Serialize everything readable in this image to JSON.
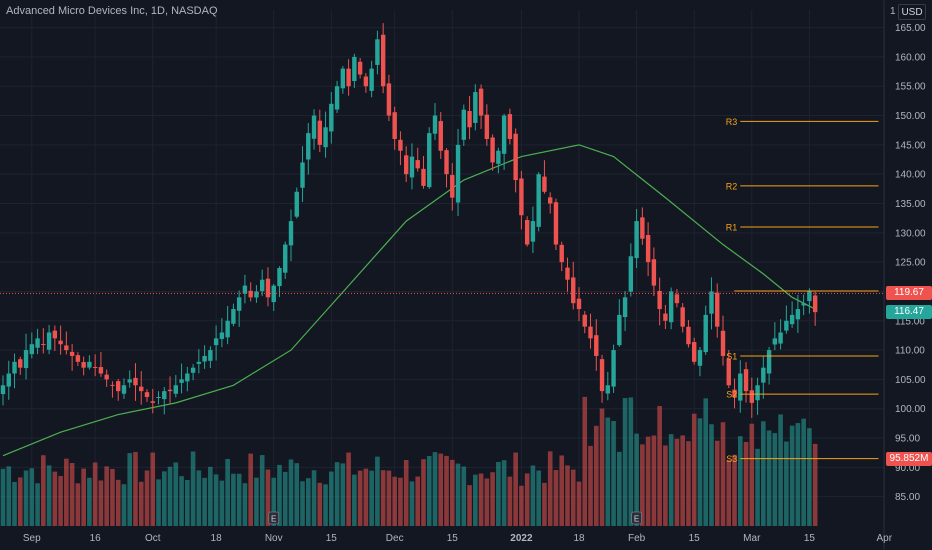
{
  "header": {
    "symbol_title": "Advanced Micro Devices Inc, 1D, NASDAQ",
    "currency": "USD",
    "axis_top_label": "1"
  },
  "colors": {
    "background": "#131722",
    "up": "#26a69a",
    "down": "#ef5350",
    "moving_average": "#4caf50",
    "pivot": "#f7a21b",
    "last_price_line": "#ef5350",
    "grid": "#1f2330",
    "text": "#b2b5be"
  },
  "chart_data": {
    "type": "candlestick",
    "title": "Advanced Micro Devices Inc, 1D, NASDAQ",
    "interval": "1D",
    "exchange": "NASDAQ",
    "currency": "USD",
    "ylim": [
      80,
      168
    ],
    "y_ticks": [
      85,
      90,
      95,
      100,
      105,
      110,
      115,
      120,
      125,
      130,
      135,
      140,
      145,
      150,
      155,
      160,
      165
    ],
    "x_ticks": [
      {
        "label": "Sep",
        "index": 5
      },
      {
        "label": "16",
        "index": 16
      },
      {
        "label": "Oct",
        "index": 26
      },
      {
        "label": "18",
        "index": 37
      },
      {
        "label": "Nov",
        "index": 47
      },
      {
        "label": "15",
        "index": 57
      },
      {
        "label": "Dec",
        "index": 68
      },
      {
        "label": "15",
        "index": 78
      },
      {
        "label": "2022",
        "index": 90
      },
      {
        "label": "18",
        "index": 100
      },
      {
        "label": "Feb",
        "index": 110
      },
      {
        "label": "15",
        "index": 120
      },
      {
        "label": "Mar",
        "index": 130
      },
      {
        "label": "15",
        "index": 140
      },
      {
        "label": "Apr",
        "index": 153
      }
    ],
    "closes": [
      104,
      106,
      108,
      107,
      110,
      111,
      112,
      111,
      113,
      112,
      111,
      110,
      109,
      108,
      107,
      108,
      107,
      106,
      105,
      104,
      103,
      104,
      105,
      104,
      103,
      102,
      101,
      102,
      103,
      103,
      104,
      105,
      106,
      107,
      108,
      109,
      110,
      112,
      113,
      115,
      117,
      119,
      121,
      119,
      120,
      122,
      119,
      121,
      124,
      128,
      132,
      137,
      142,
      147,
      150,
      145,
      148,
      152,
      155,
      158,
      155,
      160,
      157,
      155,
      158,
      163,
      155,
      150,
      146,
      144,
      140,
      143,
      141,
      138,
      147,
      150,
      144,
      140,
      136,
      145,
      151,
      148,
      154,
      150,
      146,
      142,
      144,
      150,
      146,
      139,
      133,
      128,
      132,
      140,
      137,
      135,
      128,
      125,
      122,
      118,
      117,
      114,
      112,
      109,
      103,
      104,
      110,
      116,
      119,
      126,
      132,
      129,
      125,
      121,
      117,
      115,
      120,
      118,
      114,
      111,
      108,
      110,
      116,
      120,
      114,
      109,
      104,
      102,
      106,
      103,
      101,
      104,
      107,
      110,
      112,
      113,
      115,
      116,
      117,
      118,
      120,
      116.47
    ],
    "last_price": 116.47,
    "last_price_label": "116.47",
    "prev_price": 119.67,
    "prev_price_label": "119.67",
    "volume_label": "95.852M",
    "moving_average": {
      "name": "",
      "points": [
        {
          "i": 0,
          "v": 92
        },
        {
          "i": 10,
          "v": 96
        },
        {
          "i": 20,
          "v": 99
        },
        {
          "i": 30,
          "v": 101
        },
        {
          "i": 40,
          "v": 104
        },
        {
          "i": 50,
          "v": 110
        },
        {
          "i": 60,
          "v": 121
        },
        {
          "i": 70,
          "v": 132
        },
        {
          "i": 80,
          "v": 139
        },
        {
          "i": 90,
          "v": 143
        },
        {
          "i": 100,
          "v": 145
        },
        {
          "i": 106,
          "v": 143
        },
        {
          "i": 115,
          "v": 136
        },
        {
          "i": 125,
          "v": 128
        },
        {
          "i": 132,
          "v": 123
        },
        {
          "i": 137,
          "v": 119
        },
        {
          "i": 141,
          "v": 117
        }
      ]
    },
    "pivots": [
      {
        "label": "R3",
        "value": 149
      },
      {
        "label": "R2",
        "value": 138
      },
      {
        "label": "R1",
        "value": 131
      },
      {
        "label": "S1",
        "value": 109
      },
      {
        "label": "S2",
        "value": 102.5
      },
      {
        "label": "S3",
        "value": 91.5
      }
    ],
    "pivot_start_index": 128,
    "pivot_end_index": 152,
    "earnings_markers": [
      47,
      110
    ]
  }
}
